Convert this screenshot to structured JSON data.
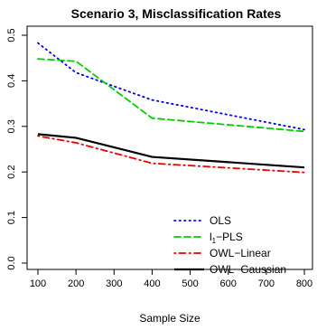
{
  "chart_data": {
    "type": "line",
    "title": "Scenario 3, Misclassification Rates",
    "xlabel": "Sample Size",
    "ylabel": "",
    "x": [
      100,
      200,
      400,
      800
    ],
    "xlim": [
      100,
      800
    ],
    "ylim": [
      0,
      0.5
    ],
    "xticks": [
      "100",
      "200",
      "300",
      "400",
      "500",
      "600",
      "700",
      "800"
    ],
    "xtick_values": [
      100,
      200,
      300,
      400,
      500,
      600,
      700,
      800
    ],
    "yticks": [
      "0.0",
      "0.1",
      "0.2",
      "0.3",
      "0.4",
      "0.5"
    ],
    "ytick_values": [
      0,
      0.1,
      0.2,
      0.3,
      0.4,
      0.5
    ],
    "grid": false,
    "legend_position": "bottom-right",
    "series": [
      {
        "name": "OLS",
        "legend_main": "OLS",
        "legend_sub": "",
        "legend_rest": "",
        "values": [
          0.483,
          0.418,
          0.358,
          0.293
        ],
        "color": "#0000ee",
        "dash": "dotted"
      },
      {
        "name": "l1-PLS",
        "legend_main": "l",
        "legend_sub": "1",
        "legend_rest": "−PLS",
        "values": [
          0.448,
          0.443,
          0.318,
          0.289
        ],
        "color": "#00cc00",
        "dash": "dashed"
      },
      {
        "name": "OWL−Linear",
        "legend_main": "OWL−Linear",
        "legend_sub": "",
        "legend_rest": "",
        "values": [
          0.279,
          0.264,
          0.219,
          0.199
        ],
        "color": "#ee0000",
        "dash": "dotdash"
      },
      {
        "name": "OWL−Gaussian",
        "legend_main": "OWL−Gaussian",
        "legend_sub": "",
        "legend_rest": "",
        "values": [
          0.283,
          0.275,
          0.233,
          0.21
        ],
        "color": "#000000",
        "dash": "solid"
      }
    ]
  }
}
